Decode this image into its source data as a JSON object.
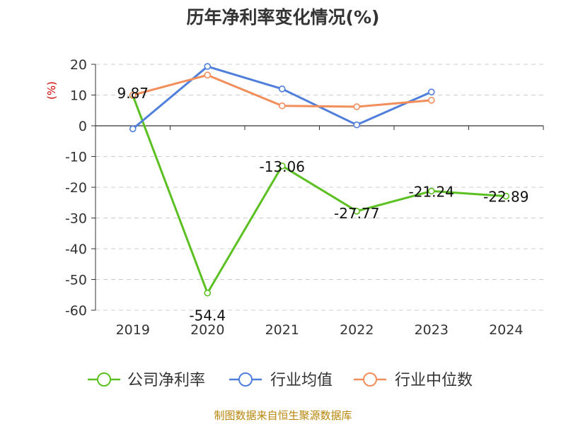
{
  "chart_data": {
    "type": "line",
    "title": "历年净利率变化情况(%)",
    "ylabel": "(%)",
    "xlabel": "",
    "categories": [
      "2019",
      "2020",
      "2021",
      "2022",
      "2023",
      "2024"
    ],
    "ylim": [
      -60,
      20
    ],
    "yticks": [
      20,
      10,
      0,
      -10,
      -20,
      -30,
      -40,
      -50,
      -60
    ],
    "grid": true,
    "legend_position": "bottom",
    "series": [
      {
        "name": "公司净利率",
        "color": "#5bc021",
        "values": [
          9.87,
          -54.4,
          -13.06,
          -27.77,
          -21.24,
          -22.89
        ],
        "labels": [
          "9.87",
          "-54.4",
          "-13.06",
          "-27.77",
          "-21.24",
          "-22.89"
        ]
      },
      {
        "name": "行业均值",
        "color": "#4f7fdb",
        "values": [
          -1,
          19.3,
          12,
          0.3,
          11,
          null
        ]
      },
      {
        "name": "行业中位数",
        "color": "#f28e5a",
        "values": [
          10,
          16.5,
          6.5,
          6.2,
          8.3,
          null
        ]
      }
    ]
  },
  "source": "制图数据来自恒生聚源数据库"
}
